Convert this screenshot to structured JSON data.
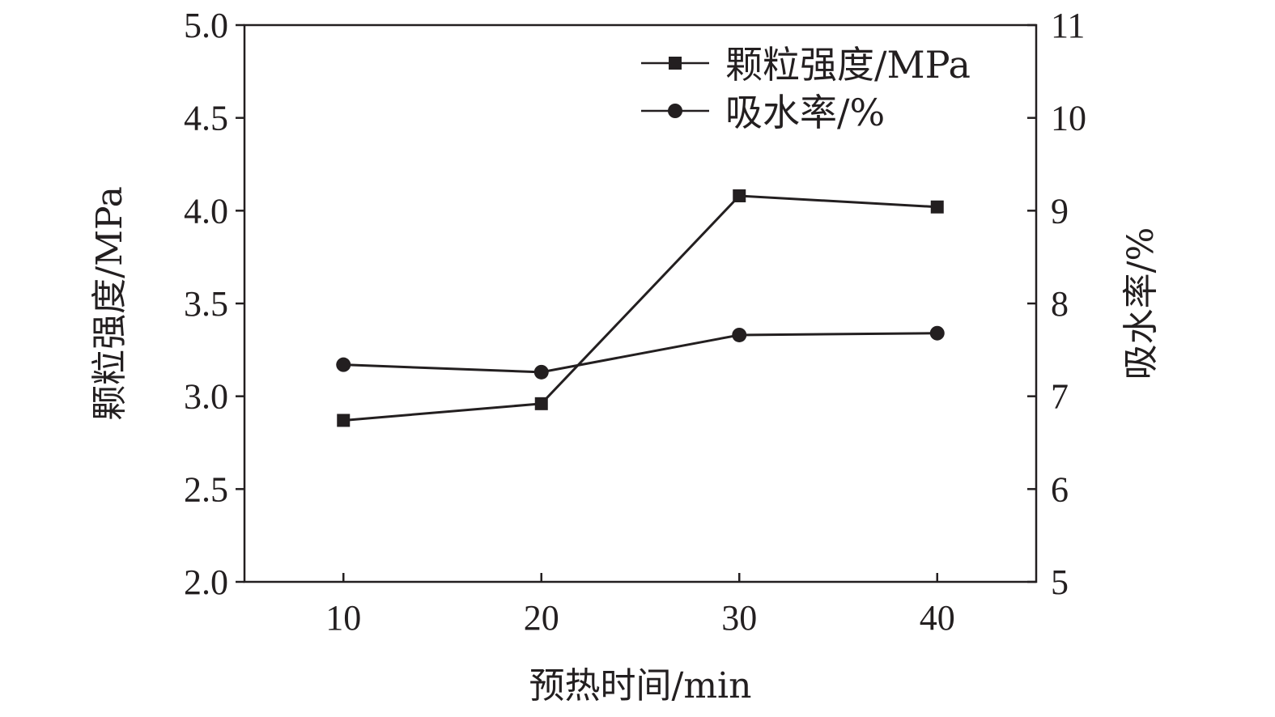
{
  "chart_data": {
    "type": "line",
    "x": [
      10,
      20,
      30,
      40
    ],
    "xlabel": "预热时间/min",
    "xlim": [
      5,
      45
    ],
    "x_ticks": [
      "10",
      "20",
      "30",
      "40"
    ],
    "y_left": {
      "label": "颗粒强度/MPa",
      "lim": [
        2.0,
        5.0
      ],
      "ticks": [
        "2.0",
        "2.5",
        "3.0",
        "3.5",
        "4.0",
        "4.5",
        "5.0"
      ]
    },
    "y_right": {
      "label": "吸水率/%",
      "lim": [
        5,
        11
      ],
      "ticks": [
        "5",
        "6",
        "7",
        "8",
        "9",
        "10",
        "11"
      ]
    },
    "series": [
      {
        "name": "颗粒强度/MPa",
        "axis": "left",
        "marker": "square",
        "values": [
          2.87,
          2.96,
          4.08,
          4.02
        ]
      },
      {
        "name": "吸水率/%",
        "axis": "right",
        "marker": "circle",
        "values": [
          7.34,
          7.26,
          7.66,
          7.68
        ]
      }
    ],
    "legend_position": "top-right",
    "grid": false,
    "color": "#231f20"
  }
}
